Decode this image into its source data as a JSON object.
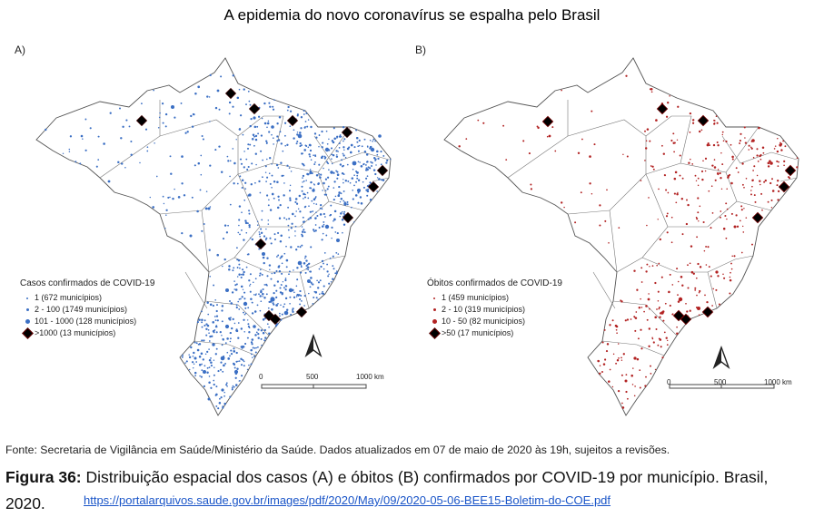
{
  "title": "A epidemia do novo coronavírus se espalha pelo Brasil",
  "panel_a": {
    "label": "A)",
    "legend_title": "Casos confirmados de COVID-19",
    "legend_items": [
      "1 (672 municípios)",
      "2 - 100 (1749 municípios)",
      "101 - 1000 (128 municípios)",
      ">1000 (13 municípios)"
    ],
    "color": "#3b6fc4"
  },
  "panel_b": {
    "label": "B)",
    "legend_title": "Óbitos confirmados de COVID-19",
    "legend_items": [
      "1 (459 municípios)",
      "2 - 10 (319 municípios)",
      "10 - 50 (82 municípios)",
      ">50 (17 municípios)"
    ],
    "color": "#b22222"
  },
  "scale": {
    "zero": "0",
    "mid": "500",
    "end": "1000 km"
  },
  "source": "Fonte: Secretaria de Vigilância em Saúde/Ministério da Saúde. Dados atualizados em 07 de maio de 2020 às 19h, sujeitos a revisões.",
  "caption_bold": "Figura 36:",
  "caption_text": " Distribuição espacial dos casos (A) e óbitos (B) confirmados por COVID-19 por município. Brasil,",
  "caption_year": "2020.",
  "link": "https://portalarquivos.saude.gov.br/images/pdf/2020/May/09/2020-05-06-BEE15-Boletim-do-COE.pdf"
}
